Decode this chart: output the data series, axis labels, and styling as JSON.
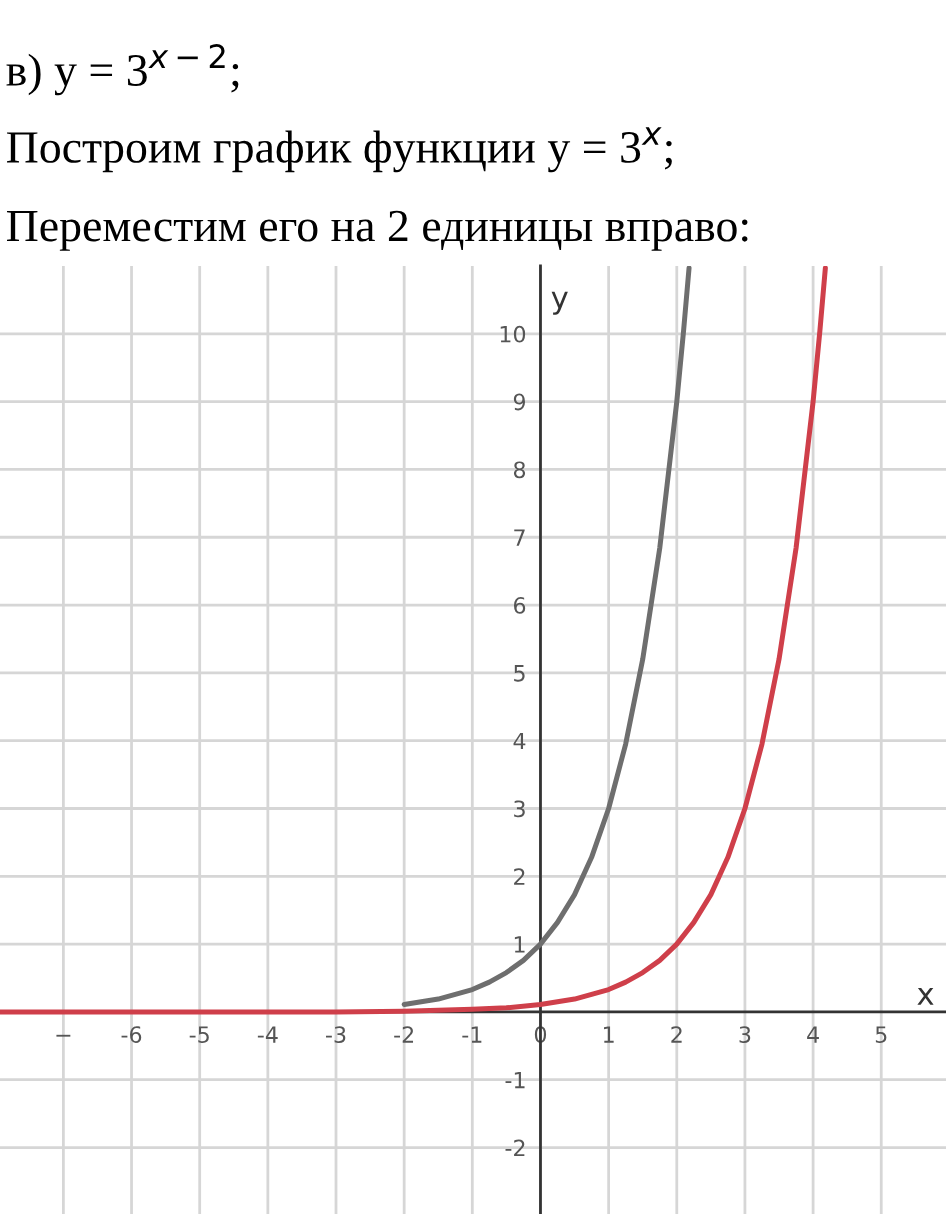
{
  "chart_data": {
    "type": "line",
    "title": "в) y = 3$^{x−2}$;",
    "subtitle": "Построим график функции y = 3$^{x}$;",
    "annotations": [
      "Переместим его на 2 единицы вправо:"
    ],
    "xlabel": "x",
    "ylabel": "y",
    "xlim": [
      -7.93,
      5.95
    ],
    "ylim": [
      -2.98,
      11
    ],
    "xticks": [
      {
        "value": -7,
        "label": "−"
      },
      -6,
      -5,
      -4,
      -3,
      -2,
      -1,
      0,
      1,
      2,
      3,
      4,
      5
    ],
    "yticks": [
      -2,
      -1,
      1,
      2,
      3,
      4,
      5,
      6,
      7,
      8,
      9,
      10
    ],
    "grid": true,
    "marker": "none",
    "line_style": "solid",
    "series": [
      {
        "color": "#6e6e6e",
        "x": [
          -2,
          -1.5,
          -1,
          -0.75,
          -0.5,
          -0.25,
          0,
          0.25,
          0.5,
          0.75,
          1,
          1.25,
          1.5,
          1.75,
          2,
          2.1,
          2.18
        ],
        "values": [
          0.11,
          0.19,
          0.33,
          0.44,
          0.58,
          0.76,
          1,
          1.32,
          1.73,
          2.28,
          3,
          3.95,
          5.2,
          6.84,
          9,
          10.05,
          10.97
        ]
      },
      {
        "color": "#cf3f4a",
        "x": [
          -7.93,
          -5,
          -4,
          -3,
          -2,
          -1,
          -0.5,
          0,
          0.5,
          1,
          1.25,
          1.5,
          1.75,
          2,
          2.25,
          2.5,
          2.75,
          3,
          3.25,
          3.5,
          3.75,
          4,
          4.1,
          4.18
        ],
        "values": [
          0,
          0,
          0,
          0,
          0.01,
          0.04,
          0.06,
          0.11,
          0.19,
          0.33,
          0.44,
          0.58,
          0.76,
          1,
          1.32,
          1.73,
          2.28,
          3,
          3.95,
          5.2,
          6.84,
          9,
          10.05,
          10.97
        ]
      }
    ]
  }
}
